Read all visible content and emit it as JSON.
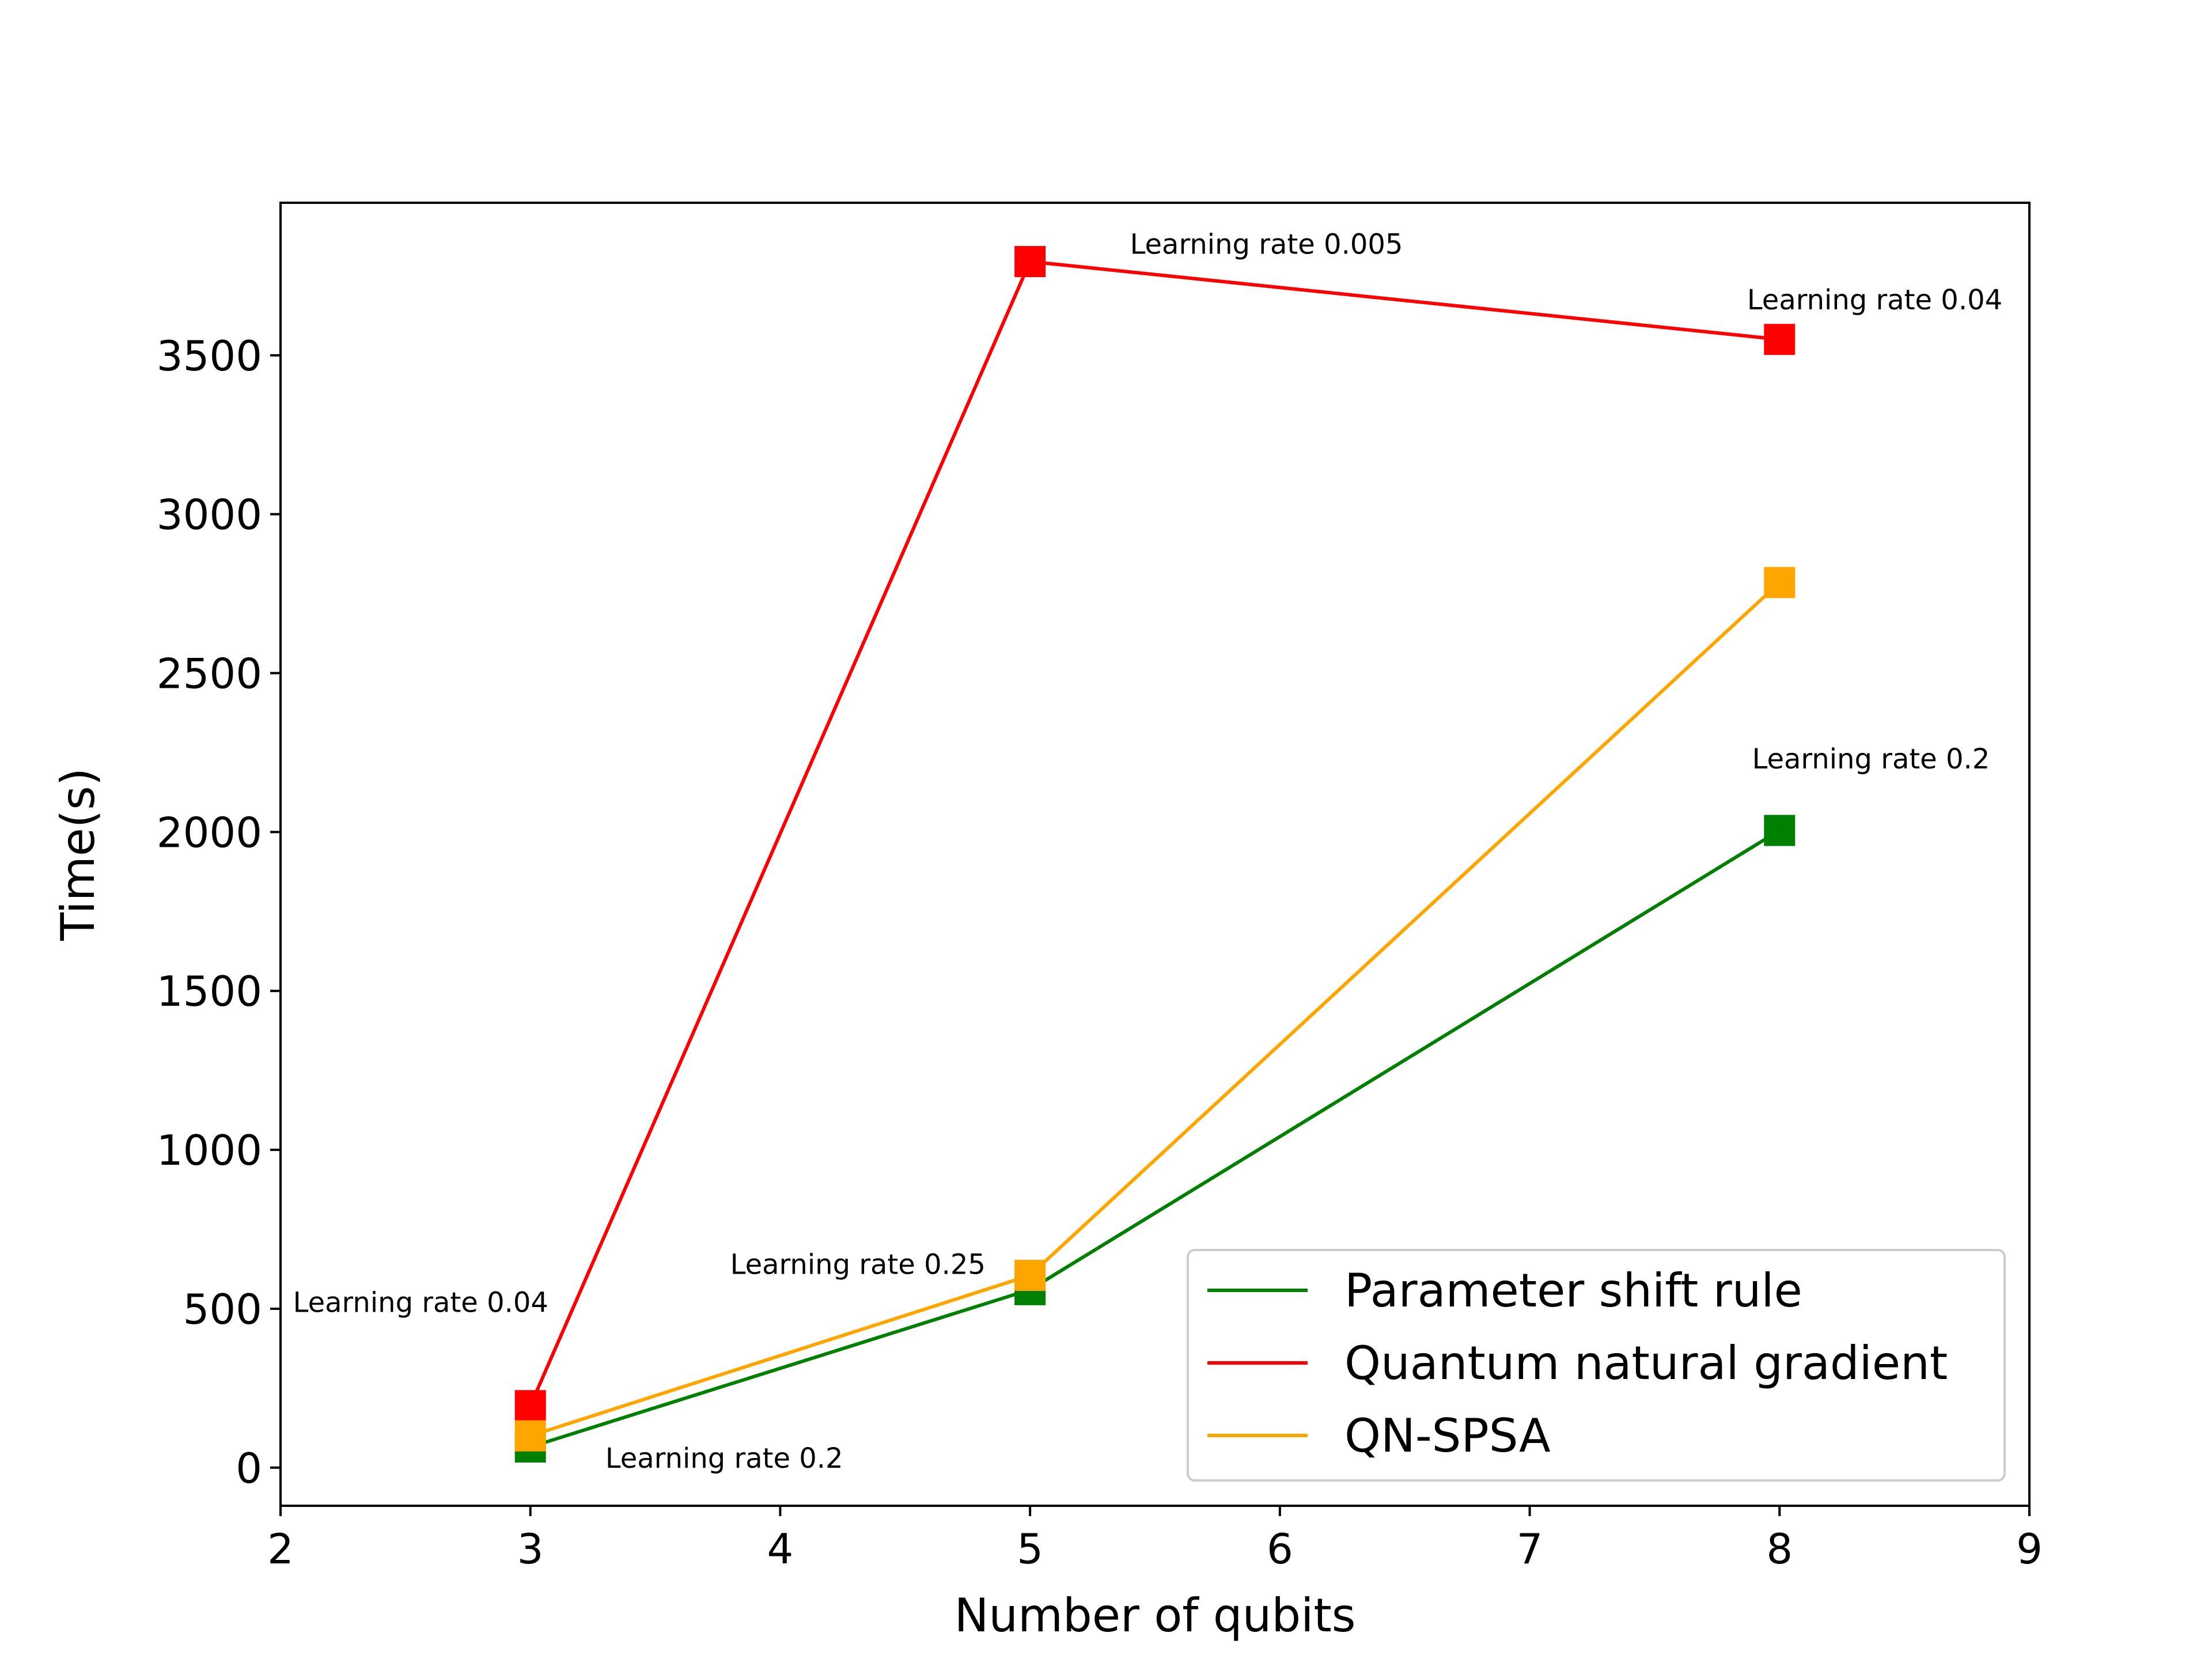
{
  "chart_data": {
    "type": "line",
    "title": "",
    "xlabel": "Number of qubits",
    "ylabel": "Time(s)",
    "xlim": [
      2,
      9
    ],
    "ylim": [
      -120,
      3980
    ],
    "xticks": [
      2,
      3,
      4,
      5,
      6,
      7,
      8,
      9
    ],
    "yticks": [
      0,
      500,
      1000,
      1500,
      2000,
      2500,
      3000,
      3500
    ],
    "x": [
      3,
      5,
      8
    ],
    "series": [
      {
        "name": "Parameter shift rule",
        "color": "#008000",
        "marker": "square",
        "values": [
          65,
          560,
          2005
        ]
      },
      {
        "name": "Quantum natural gradient",
        "color": "#ff0000",
        "marker": "square",
        "values": [
          195,
          3795,
          3550
        ]
      },
      {
        "name": "QN-SPSA",
        "color": "#ffa500",
        "marker": "square",
        "values": [
          100,
          605,
          2785
        ]
      }
    ],
    "annotations": [
      {
        "text": "Learning rate 0.04",
        "x": 2.05,
        "y": 490
      },
      {
        "text": "Learning rate 0.2",
        "x": 3.3,
        "y": 0
      },
      {
        "text": "Learning rate 0.25",
        "x": 3.8,
        "y": 610
      },
      {
        "text": "Learning rate 0.005",
        "x": 5.4,
        "y": 3820
      },
      {
        "text": "Learning rate 0.04",
        "x": 7.87,
        "y": 3645
      },
      {
        "text": "Learning rate 0.2",
        "x": 7.89,
        "y": 2200
      }
    ],
    "legend_position": "lower-right",
    "grid": false
  }
}
